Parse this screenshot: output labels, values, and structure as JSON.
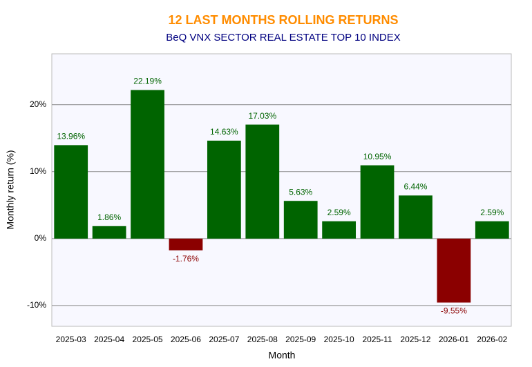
{
  "chart_data": {
    "type": "bar",
    "title": "12 LAST MONTHS ROLLING RETURNS",
    "subtitle": "BeQ VNX SECTOR REAL ESTATE TOP 10 INDEX",
    "x_label": "Month",
    "y_label": "Monthly return (%)",
    "categories": [
      "2025-03",
      "2025-04",
      "2025-05",
      "2025-06",
      "2025-07",
      "2025-08",
      "2025-09",
      "2025-10",
      "2025-11",
      "2025-12",
      "2026-01",
      "2026-02"
    ],
    "values": [
      13.96,
      1.86,
      22.19,
      -1.76,
      14.63,
      17.03,
      5.63,
      2.59,
      10.95,
      6.44,
      -9.55,
      2.59
    ],
    "value_labels": [
      "13.96%",
      "1.86%",
      "22.19%",
      "-1.76%",
      "14.63%",
      "17.03%",
      "5.63%",
      "2.59%",
      "10.95%",
      "6.44%",
      "-9.55%",
      "2.59%"
    ],
    "color": "#006400",
    "negative_color": "#8b0000",
    "ylim": [
      -13.1,
      27.6
    ],
    "yticks": [
      {
        "value": -10,
        "label": "-10%"
      },
      {
        "value": 0,
        "label": "0%"
      },
      {
        "value": 10,
        "label": "10%"
      },
      {
        "value": 20,
        "label": "20%"
      }
    ],
    "grid": true
  }
}
